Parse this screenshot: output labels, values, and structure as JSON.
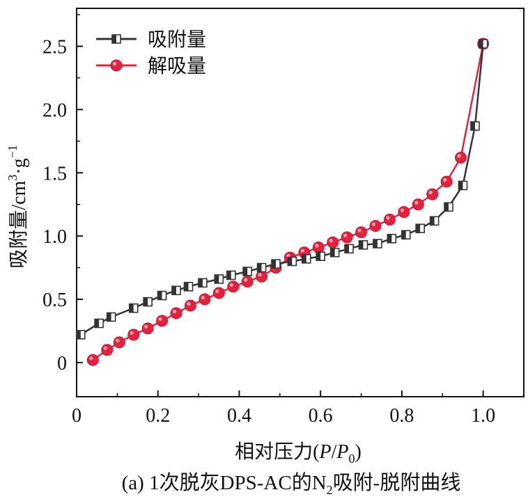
{
  "chart_data": {
    "type": "line",
    "caption_parts": [
      "(a) 1次脱灰DPS-AC的N",
      "2",
      "吸附-脱附曲线"
    ],
    "xlabel_parts": [
      "相对压力(",
      "P",
      "/",
      "P",
      "0",
      ")"
    ],
    "ylabel_parts": [
      "吸附量/cm",
      "3",
      "·g",
      "−1"
    ],
    "xlim": [
      0,
      1.1
    ],
    "ylim": [
      -0.27,
      2.8
    ],
    "xticks": [
      0,
      0.2,
      0.4,
      0.6,
      0.8,
      1.0
    ],
    "xtick_labels": [
      "0",
      "0.2",
      "0.4",
      "0.6",
      "0.8",
      "1.0"
    ],
    "yticks": [
      0,
      0.5,
      1.0,
      1.5,
      2.0,
      2.5
    ],
    "ytick_labels": [
      "0",
      "0.5",
      "1.0",
      "1.5",
      "2.0",
      "2.5"
    ],
    "grid": false,
    "legend_position": "top-left",
    "series": [
      {
        "name": "吸附量",
        "color": "#333333",
        "marker": "half-filled-square",
        "x": [
          0.01,
          0.055,
          0.085,
          0.14,
          0.175,
          0.21,
          0.245,
          0.275,
          0.31,
          0.35,
          0.38,
          0.42,
          0.455,
          0.49,
          0.53,
          0.565,
          0.6,
          0.635,
          0.67,
          0.705,
          0.74,
          0.775,
          0.81,
          0.845,
          0.88,
          0.915,
          0.95,
          0.98,
          1.0
        ],
        "y": [
          0.22,
          0.31,
          0.36,
          0.43,
          0.48,
          0.53,
          0.57,
          0.6,
          0.63,
          0.66,
          0.69,
          0.72,
          0.75,
          0.78,
          0.8,
          0.82,
          0.84,
          0.87,
          0.9,
          0.93,
          0.94,
          0.98,
          1.01,
          1.06,
          1.12,
          1.23,
          1.4,
          1.87,
          2.52
        ]
      },
      {
        "name": "解吸量",
        "color": "#e0243f",
        "marker": "circle",
        "x": [
          0.04,
          0.075,
          0.105,
          0.14,
          0.175,
          0.21,
          0.245,
          0.28,
          0.315,
          0.35,
          0.385,
          0.42,
          0.455,
          0.49,
          0.525,
          0.56,
          0.595,
          0.63,
          0.665,
          0.7,
          0.735,
          0.77,
          0.805,
          0.84,
          0.875,
          0.91,
          0.945,
          1.0
        ],
        "y": [
          0.02,
          0.1,
          0.16,
          0.22,
          0.27,
          0.33,
          0.39,
          0.45,
          0.5,
          0.55,
          0.6,
          0.64,
          0.68,
          0.75,
          0.83,
          0.87,
          0.91,
          0.95,
          0.99,
          1.03,
          1.08,
          1.13,
          1.19,
          1.25,
          1.33,
          1.43,
          1.62,
          2.52
        ]
      }
    ]
  }
}
